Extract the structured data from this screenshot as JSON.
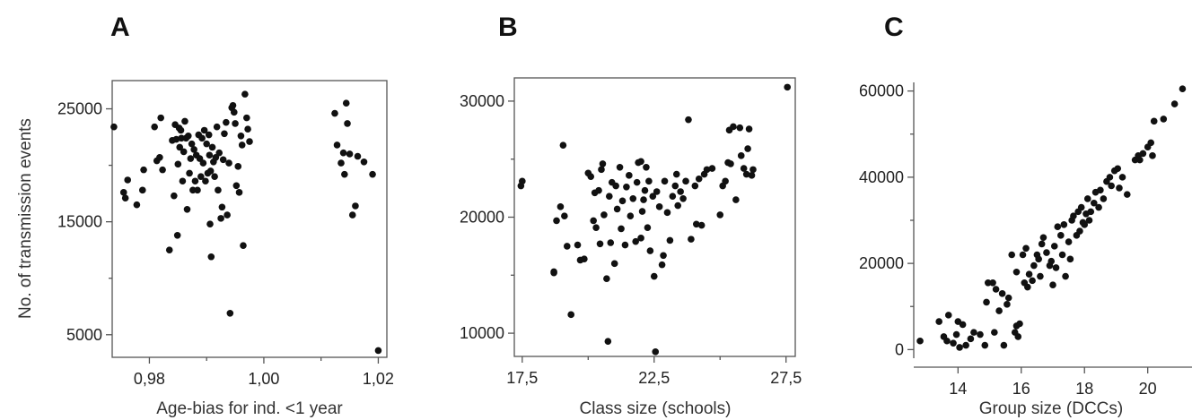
{
  "chart_data": [
    {
      "panel": "A",
      "type": "scatter",
      "xlabel": "Age-bias for ind. <1 year",
      "ylabel": "No. of transmission events",
      "xlim": [
        0.9735,
        1.0215
      ],
      "ylim": [
        3000,
        27500
      ],
      "x_ticks": [
        {
          "v": 0.98,
          "label": "0,98"
        },
        {
          "v": 1.0,
          "label": "1,00"
        },
        {
          "v": 1.02,
          "label": "1,02"
        }
      ],
      "x_minor": [
        0.99,
        1.01
      ],
      "y_ticks": [
        {
          "v": 5000,
          "label": "5000"
        },
        {
          "v": 15000,
          "label": "15000"
        },
        {
          "v": 25000,
          "label": "25000"
        }
      ],
      "y_minor": [
        10000,
        20000
      ],
      "points": [
        [
          0.9738,
          23400
        ],
        [
          0.9755,
          17600
        ],
        [
          0.9758,
          17100
        ],
        [
          0.9762,
          18700
        ],
        [
          0.9778,
          16500
        ],
        [
          0.9788,
          17800
        ],
        [
          0.979,
          19600
        ],
        [
          0.9809,
          23400
        ],
        [
          0.9813,
          20400
        ],
        [
          0.9818,
          20700
        ],
        [
          0.982,
          24200
        ],
        [
          0.9823,
          19600
        ],
        [
          0.9835,
          12500
        ],
        [
          0.984,
          22200
        ],
        [
          0.9843,
          17300
        ],
        [
          0.9845,
          23600
        ],
        [
          0.9847,
          22300
        ],
        [
          0.9849,
          13800
        ],
        [
          0.985,
          20100
        ],
        [
          0.9852,
          23300
        ],
        [
          0.9853,
          21600
        ],
        [
          0.9855,
          23100
        ],
        [
          0.9856,
          22400
        ],
        [
          0.9858,
          18600
        ],
        [
          0.986,
          21200
        ],
        [
          0.9862,
          23900
        ],
        [
          0.9864,
          22400
        ],
        [
          0.9866,
          16100
        ],
        [
          0.9868,
          22600
        ],
        [
          0.987,
          19300
        ],
        [
          0.9872,
          20600
        ],
        [
          0.9874,
          21900
        ],
        [
          0.9876,
          17800
        ],
        [
          0.9878,
          21400
        ],
        [
          0.988,
          18600
        ],
        [
          0.9882,
          20900
        ],
        [
          0.9884,
          17800
        ],
        [
          0.9886,
          22700
        ],
        [
          0.9888,
          20600
        ],
        [
          0.989,
          19000
        ],
        [
          0.9892,
          22400
        ],
        [
          0.9894,
          20200
        ],
        [
          0.9896,
          23100
        ],
        [
          0.9898,
          18600
        ],
        [
          0.99,
          21900
        ],
        [
          0.9902,
          19300
        ],
        [
          0.9904,
          22700
        ],
        [
          0.9905,
          20900
        ],
        [
          0.9906,
          14800
        ],
        [
          0.9907,
          19500
        ],
        [
          0.9908,
          11900
        ],
        [
          0.991,
          21600
        ],
        [
          0.9912,
          20300
        ],
        [
          0.9914,
          19000
        ],
        [
          0.9916,
          20700
        ],
        [
          0.9918,
          23400
        ],
        [
          0.992,
          17800
        ],
        [
          0.9922,
          21100
        ],
        [
          0.9925,
          15300
        ],
        [
          0.9927,
          16300
        ],
        [
          0.9929,
          20500
        ],
        [
          0.9931,
          22800
        ],
        [
          0.9934,
          23800
        ],
        [
          0.9936,
          15600
        ],
        [
          0.9939,
          20200
        ],
        [
          0.9941,
          6900
        ],
        [
          0.9944,
          25100
        ],
        [
          0.9946,
          25300
        ],
        [
          0.9948,
          24700
        ],
        [
          0.995,
          23700
        ],
        [
          0.9952,
          18200
        ],
        [
          0.9955,
          19900
        ],
        [
          0.9957,
          17600
        ],
        [
          0.996,
          22600
        ],
        [
          0.9962,
          21800
        ],
        [
          0.9964,
          12900
        ],
        [
          0.9967,
          26300
        ],
        [
          0.997,
          24200
        ],
        [
          0.9972,
          23200
        ],
        [
          0.9975,
          22100
        ],
        [
          1.0124,
          24600
        ],
        [
          1.0128,
          21800
        ],
        [
          1.0135,
          20200
        ],
        [
          1.0139,
          21100
        ],
        [
          1.0141,
          19200
        ],
        [
          1.0144,
          25500
        ],
        [
          1.0146,
          23700
        ],
        [
          1.015,
          21000
        ],
        [
          1.0155,
          15600
        ],
        [
          1.016,
          16400
        ],
        [
          1.0164,
          20800
        ],
        [
          1.0175,
          20300
        ],
        [
          1.019,
          19200
        ],
        [
          1.02,
          3600
        ]
      ]
    },
    {
      "panel": "B",
      "type": "scatter",
      "xlabel": "Class size (schools)",
      "ylabel": "",
      "xlim": [
        17.2,
        27.85
      ],
      "ylim": [
        8000,
        32000
      ],
      "x_ticks": [
        {
          "v": 17.5,
          "label": "17,5"
        },
        {
          "v": 22.5,
          "label": "22,5"
        },
        {
          "v": 27.5,
          "label": "27,5"
        }
      ],
      "x_minor": [
        20,
        25
      ],
      "y_ticks": [
        {
          "v": 10000,
          "label": "10000"
        },
        {
          "v": 20000,
          "label": "20000"
        },
        {
          "v": 30000,
          "label": "30000"
        }
      ],
      "y_minor": [
        15000,
        25000
      ],
      "points": [
        [
          17.45,
          22700
        ],
        [
          17.5,
          23100
        ],
        [
          18.7,
          15300
        ],
        [
          18.7,
          15200
        ],
        [
          18.8,
          19700
        ],
        [
          18.95,
          20900
        ],
        [
          19.05,
          26200
        ],
        [
          19.1,
          20100
        ],
        [
          19.2,
          17500
        ],
        [
          19.35,
          11600
        ],
        [
          19.6,
          17600
        ],
        [
          19.7,
          16300
        ],
        [
          19.85,
          16400
        ],
        [
          20.0,
          23800
        ],
        [
          20.1,
          23500
        ],
        [
          20.2,
          19700
        ],
        [
          20.25,
          22100
        ],
        [
          20.3,
          19100
        ],
        [
          20.4,
          22300
        ],
        [
          20.45,
          17700
        ],
        [
          20.5,
          24100
        ],
        [
          20.55,
          24600
        ],
        [
          20.6,
          20200
        ],
        [
          20.7,
          14700
        ],
        [
          20.75,
          9300
        ],
        [
          20.8,
          21800
        ],
        [
          20.85,
          17800
        ],
        [
          20.9,
          23000
        ],
        [
          21.0,
          16000
        ],
        [
          21.05,
          22700
        ],
        [
          21.1,
          20700
        ],
        [
          21.2,
          24300
        ],
        [
          21.25,
          19000
        ],
        [
          21.3,
          21400
        ],
        [
          21.4,
          17600
        ],
        [
          21.45,
          22600
        ],
        [
          21.55,
          23600
        ],
        [
          21.6,
          20100
        ],
        [
          21.7,
          21600
        ],
        [
          21.8,
          17900
        ],
        [
          21.85,
          23000
        ],
        [
          21.9,
          24700
        ],
        [
          22.0,
          24800
        ],
        [
          22.0,
          18200
        ],
        [
          22.05,
          20500
        ],
        [
          22.1,
          21500
        ],
        [
          22.15,
          22300
        ],
        [
          22.2,
          24300
        ],
        [
          22.25,
          19100
        ],
        [
          22.3,
          23100
        ],
        [
          22.35,
          17100
        ],
        [
          22.45,
          21800
        ],
        [
          22.5,
          14900
        ],
        [
          22.55,
          8400
        ],
        [
          22.6,
          22200
        ],
        [
          22.7,
          20900
        ],
        [
          22.8,
          15900
        ],
        [
          22.85,
          16700
        ],
        [
          22.9,
          23100
        ],
        [
          23.0,
          20400
        ],
        [
          23.1,
          18000
        ],
        [
          23.2,
          21800
        ],
        [
          23.3,
          22700
        ],
        [
          23.35,
          23700
        ],
        [
          23.4,
          21000
        ],
        [
          23.5,
          22200
        ],
        [
          23.6,
          21600
        ],
        [
          23.7,
          23100
        ],
        [
          23.8,
          28400
        ],
        [
          23.9,
          18100
        ],
        [
          24.05,
          22700
        ],
        [
          24.1,
          19400
        ],
        [
          24.2,
          23300
        ],
        [
          24.3,
          19300
        ],
        [
          24.4,
          23700
        ],
        [
          24.5,
          24100
        ],
        [
          24.7,
          24200
        ],
        [
          25.0,
          20200
        ],
        [
          25.1,
          22700
        ],
        [
          25.2,
          23100
        ],
        [
          25.3,
          24700
        ],
        [
          25.35,
          27500
        ],
        [
          25.4,
          24600
        ],
        [
          25.5,
          27800
        ],
        [
          25.6,
          21500
        ],
        [
          25.75,
          27700
        ],
        [
          25.8,
          25300
        ],
        [
          25.9,
          24200
        ],
        [
          26.0,
          23700
        ],
        [
          26.05,
          25900
        ],
        [
          26.1,
          27600
        ],
        [
          26.2,
          23600
        ],
        [
          26.25,
          24100
        ],
        [
          27.55,
          31200
        ]
      ]
    },
    {
      "panel": "C",
      "type": "scatter",
      "xlabel": "Group size (DCCs)",
      "ylabel": "",
      "xlim": [
        12.6,
        21.4
      ],
      "ylim": [
        -2000,
        62000
      ],
      "x_ticks": [
        {
          "v": 14,
          "label": "14"
        },
        {
          "v": 16,
          "label": "16"
        },
        {
          "v": 18,
          "label": "18"
        },
        {
          "v": 20,
          "label": "20"
        }
      ],
      "y_ticks": [
        {
          "v": 0,
          "label": "0"
        },
        {
          "v": 20000,
          "label": "20000"
        },
        {
          "v": 40000,
          "label": "40000"
        },
        {
          "v": 60000,
          "label": "60000"
        }
      ],
      "y_minor": [
        10000,
        30000,
        50000
      ],
      "points": [
        [
          12.8,
          2000
        ],
        [
          13.4,
          6500
        ],
        [
          13.55,
          3000
        ],
        [
          13.65,
          2000
        ],
        [
          13.7,
          8000
        ],
        [
          13.85,
          1500
        ],
        [
          13.95,
          3500
        ],
        [
          14.0,
          6500
        ],
        [
          14.05,
          500
        ],
        [
          14.15,
          5800
        ],
        [
          14.25,
          1000
        ],
        [
          14.4,
          2500
        ],
        [
          14.5,
          4000
        ],
        [
          14.7,
          3500
        ],
        [
          14.85,
          1000
        ],
        [
          14.9,
          11000
        ],
        [
          14.95,
          15500
        ],
        [
          15.1,
          15500
        ],
        [
          15.15,
          4000
        ],
        [
          15.2,
          14000
        ],
        [
          15.3,
          9000
        ],
        [
          15.4,
          13000
        ],
        [
          15.45,
          1000
        ],
        [
          15.55,
          10500
        ],
        [
          15.6,
          12000
        ],
        [
          15.7,
          22000
        ],
        [
          15.8,
          4000
        ],
        [
          15.85,
          5500
        ],
        [
          15.85,
          18000
        ],
        [
          15.9,
          3000
        ],
        [
          15.95,
          6000
        ],
        [
          16.05,
          22000
        ],
        [
          16.1,
          15500
        ],
        [
          16.15,
          23500
        ],
        [
          16.2,
          14500
        ],
        [
          16.25,
          17500
        ],
        [
          16.35,
          16000
        ],
        [
          16.4,
          19500
        ],
        [
          16.5,
          22000
        ],
        [
          16.55,
          21000
        ],
        [
          16.6,
          17000
        ],
        [
          16.65,
          24500
        ],
        [
          16.7,
          26000
        ],
        [
          16.8,
          22500
        ],
        [
          16.9,
          19500
        ],
        [
          16.95,
          20500
        ],
        [
          17.0,
          15000
        ],
        [
          17.05,
          24000
        ],
        [
          17.1,
          19000
        ],
        [
          17.15,
          28500
        ],
        [
          17.25,
          26500
        ],
        [
          17.3,
          22000
        ],
        [
          17.35,
          29000
        ],
        [
          17.4,
          17000
        ],
        [
          17.5,
          25000
        ],
        [
          17.55,
          21000
        ],
        [
          17.6,
          30000
        ],
        [
          17.65,
          31000
        ],
        [
          17.75,
          26500
        ],
        [
          17.8,
          32000
        ],
        [
          17.85,
          27500
        ],
        [
          17.9,
          33000
        ],
        [
          17.95,
          29500
        ],
        [
          18.0,
          29000
        ],
        [
          18.05,
          31500
        ],
        [
          18.1,
          35000
        ],
        [
          18.15,
          30000
        ],
        [
          18.2,
          32000
        ],
        [
          18.3,
          34000
        ],
        [
          18.35,
          36500
        ],
        [
          18.45,
          33000
        ],
        [
          18.5,
          37000
        ],
        [
          18.6,
          35000
        ],
        [
          18.7,
          39000
        ],
        [
          18.8,
          40000
        ],
        [
          18.85,
          38000
        ],
        [
          18.95,
          41500
        ],
        [
          19.05,
          42000
        ],
        [
          19.1,
          37500
        ],
        [
          19.2,
          40000
        ],
        [
          19.35,
          36000
        ],
        [
          19.6,
          44000
        ],
        [
          19.7,
          45000
        ],
        [
          19.75,
          44000
        ],
        [
          19.85,
          45500
        ],
        [
          20.0,
          47000
        ],
        [
          20.1,
          48000
        ],
        [
          20.15,
          45000
        ],
        [
          20.2,
          53000
        ],
        [
          20.5,
          53500
        ],
        [
          20.85,
          57000
        ],
        [
          21.1,
          60500
        ]
      ]
    }
  ],
  "panels": [
    {
      "letter": "A"
    },
    {
      "letter": "B"
    },
    {
      "letter": "C"
    }
  ]
}
